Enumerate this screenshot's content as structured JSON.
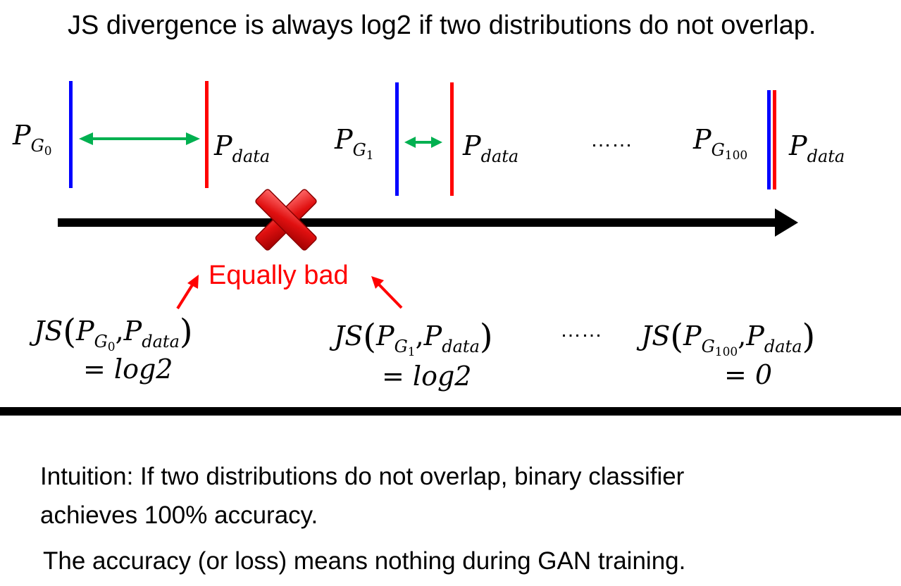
{
  "title": "JS divergence is always log2 if two distributions do not overlap.",
  "distributions": {
    "p_letter": "P",
    "g_letter": "G",
    "g0_sub": "0",
    "g1_sub": "1",
    "g100_sub": "100",
    "data_sub": "data",
    "dots": "……"
  },
  "annotation": {
    "label": "Equally bad"
  },
  "formulas": {
    "js": "JS",
    "open_paren": "(",
    "comma": ",",
    "close_paren": ")",
    "result_0": "= log2",
    "result_1": "= log2",
    "result_100": "= 0",
    "dots": "……"
  },
  "intuition": {
    "line1": "Intuition: If two distributions do not overlap, binary classifier",
    "line2": "achieves 100% accuracy."
  },
  "conclusion": "The accuracy (or loss) means nothing during GAN training.",
  "colors": {
    "generator_line": "#0000ff",
    "data_line": "#ff0000",
    "distance_arrow": "#00b050",
    "annotation": "#ff0000",
    "timeline": "#000000"
  },
  "icons": {
    "cross": "red-cross-icon"
  }
}
